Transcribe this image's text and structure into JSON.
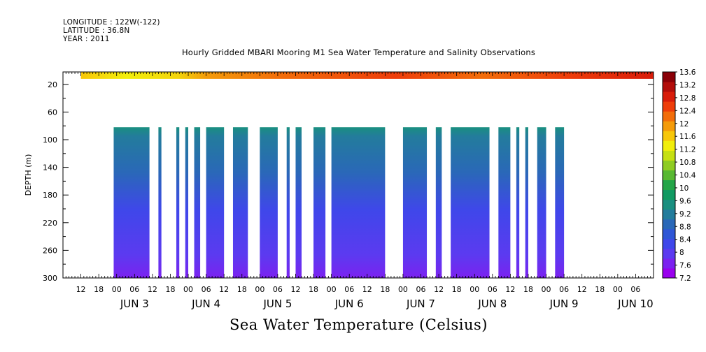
{
  "header": {
    "longitude": "LONGITUDE : 122W(-122)",
    "latitude": "LATITUDE : 36.8N",
    "year": "YEAR : 2011"
  },
  "chart_data": {
    "type": "heatmap",
    "title": "Hourly Gridded MBARI Mooring M1 Sea Water Temperature and Salinity Observations",
    "xlabel": "Sea Water Temperature (Celsius)",
    "ylabel": "DEPTH (m)",
    "x_range": [
      "2011-06-02 06:00",
      "2011-06-10 12:00"
    ],
    "ylim": [
      300,
      2
    ],
    "y_ticks": [
      20,
      60,
      100,
      140,
      180,
      220,
      260,
      300
    ],
    "x_hour_ticks": [
      "12",
      "18",
      "00",
      "06",
      "12",
      "18",
      "00",
      "06",
      "12",
      "18",
      "00",
      "06",
      "12",
      "18",
      "00",
      "06",
      "12",
      "18",
      "00",
      "06",
      "12",
      "18",
      "00",
      "06",
      "12",
      "18",
      "00",
      "06",
      "12",
      "18",
      "00",
      "06"
    ],
    "x_day_labels": [
      "JUN  3",
      "JUN  4",
      "JUN  5",
      "JUN  6",
      "JUN  7",
      "JUN  8",
      "JUN  9",
      "JUN 10"
    ],
    "colorbar_ticks": [
      "13.6",
      "13.2",
      "12.8",
      "12.4",
      "12",
      "11.6",
      "11.2",
      "10.8",
      "10.4",
      "10",
      "9.6",
      "9.2",
      "8.8",
      "8.4",
      "8",
      "7.6",
      "7.2"
    ],
    "colorbar_range": [
      7.2,
      13.6
    ],
    "colors": [
      "#9900ee",
      "#7b22f0",
      "#5c3af0",
      "#3f47ea",
      "#2f56d6",
      "#2a68b8",
      "#237c9c",
      "#1a8f80",
      "#119a62",
      "#24a548",
      "#58b832",
      "#8fcc22",
      "#c6e012",
      "#f2ee0b",
      "#f7c70a",
      "#f49b0a",
      "#f26d0a",
      "#ee3d0a",
      "#d81c0a",
      "#b20d0a",
      "#8a0007"
    ],
    "surface_layer": {
      "depth_range": [
        2,
        12
      ],
      "temperature_range": [
        11.4,
        13.6
      ],
      "start": "2011-06-02 12:00"
    },
    "deep_layer": {
      "depth_range": [
        82,
        300
      ],
      "temperature_top": 9.0,
      "temperature_bottom": 7.4
    },
    "deep_data_segments": [
      [
        "2011-06-02 23:00",
        "2011-06-03 11:00"
      ],
      [
        "2011-06-03 14:00",
        "2011-06-03 15:00"
      ],
      [
        "2011-06-03 20:00",
        "2011-06-03 21:00"
      ],
      [
        "2011-06-03 23:00",
        "2011-06-04 00:00"
      ],
      [
        "2011-06-04 02:00",
        "2011-06-04 04:00"
      ],
      [
        "2011-06-04 06:00",
        "2011-06-04 12:00"
      ],
      [
        "2011-06-04 15:00",
        "2011-06-04 20:00"
      ],
      [
        "2011-06-05 00:00",
        "2011-06-05 06:00"
      ],
      [
        "2011-06-05 09:00",
        "2011-06-05 10:00"
      ],
      [
        "2011-06-05 12:00",
        "2011-06-05 14:00"
      ],
      [
        "2011-06-05 18:00",
        "2011-06-05 22:00"
      ],
      [
        "2011-06-06 00:00",
        "2011-06-06 18:00"
      ],
      [
        "2011-06-07 00:00",
        "2011-06-07 08:00"
      ],
      [
        "2011-06-07 11:00",
        "2011-06-07 13:00"
      ],
      [
        "2011-06-07 16:00",
        "2011-06-08 05:00"
      ],
      [
        "2011-06-08 08:00",
        "2011-06-08 12:00"
      ],
      [
        "2011-06-08 14:00",
        "2011-06-08 15:00"
      ],
      [
        "2011-06-08 17:00",
        "2011-06-08 18:00"
      ],
      [
        "2011-06-08 21:00",
        "2011-06-09 00:00"
      ],
      [
        "2011-06-09 03:00",
        "2011-06-09 06:00"
      ]
    ]
  }
}
